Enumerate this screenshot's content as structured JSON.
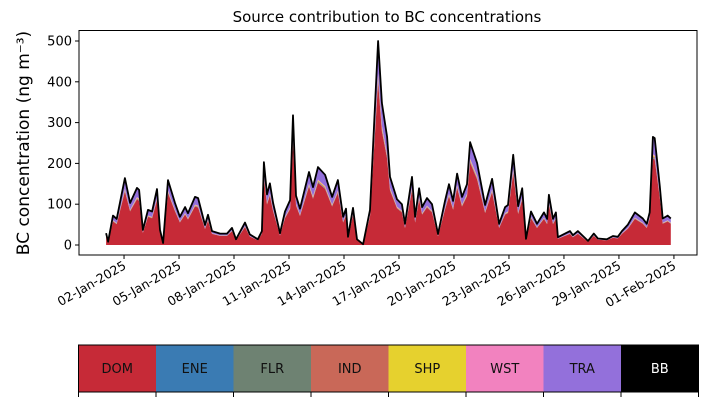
{
  "chart_data": {
    "type": "area",
    "stacked": true,
    "title": "Source contribution to BC concentrations",
    "ylabel": "BC concentration (ng m⁻³)",
    "xlabel": "",
    "x_unit": "days since 01-Jan-2025",
    "ylim": [
      -25,
      525
    ],
    "yticks": [
      0,
      100,
      200,
      300,
      400,
      500
    ],
    "xlim_days": [
      -1.1,
      32.6
    ],
    "xticks": [
      {
        "day": 1,
        "label": "02-Jan-2025"
      },
      {
        "day": 4,
        "label": "05-Jan-2025"
      },
      {
        "day": 7,
        "label": "08-Jan-2025"
      },
      {
        "day": 10,
        "label": "11-Jan-2025"
      },
      {
        "day": 13,
        "label": "14-Jan-2025"
      },
      {
        "day": 16,
        "label": "17-Jan-2025"
      },
      {
        "day": 19,
        "label": "20-Jan-2025"
      },
      {
        "day": 22,
        "label": "23-Jan-2025"
      },
      {
        "day": 25,
        "label": "26-Jan-2025"
      },
      {
        "day": 28,
        "label": "29-Jan-2025"
      },
      {
        "day": 31,
        "label": "01-Feb-2025"
      }
    ],
    "total": [
      [
        0.02,
        29
      ],
      [
        0.13,
        8
      ],
      [
        0.4,
        72
      ],
      [
        0.6,
        64
      ],
      [
        1.05,
        164
      ],
      [
        1.33,
        103
      ],
      [
        1.71,
        140
      ],
      [
        1.82,
        135
      ],
      [
        2.03,
        37
      ],
      [
        2.31,
        86
      ],
      [
        2.53,
        82
      ],
      [
        2.8,
        137
      ],
      [
        2.96,
        37
      ],
      [
        3.13,
        5
      ],
      [
        3.4,
        159
      ],
      [
        3.78,
        103
      ],
      [
        4.05,
        69
      ],
      [
        4.33,
        93
      ],
      [
        4.49,
        78
      ],
      [
        4.87,
        118
      ],
      [
        5.04,
        115
      ],
      [
        5.42,
        49
      ],
      [
        5.58,
        74
      ],
      [
        5.8,
        34
      ],
      [
        6.24,
        28
      ],
      [
        6.62,
        28
      ],
      [
        6.89,
        42
      ],
      [
        7.11,
        14
      ],
      [
        7.6,
        55
      ],
      [
        7.86,
        26
      ],
      [
        8.3,
        14
      ],
      [
        8.52,
        34
      ],
      [
        8.63,
        203
      ],
      [
        8.8,
        124
      ],
      [
        8.96,
        151
      ],
      [
        9.13,
        103
      ],
      [
        9.51,
        29
      ],
      [
        9.78,
        82
      ],
      [
        10.06,
        110
      ],
      [
        10.22,
        318
      ],
      [
        10.38,
        121
      ],
      [
        10.6,
        89
      ],
      [
        11.09,
        179
      ],
      [
        11.31,
        142
      ],
      [
        11.58,
        191
      ],
      [
        11.97,
        172
      ],
      [
        12.35,
        118
      ],
      [
        12.67,
        159
      ],
      [
        12.95,
        69
      ],
      [
        13.11,
        89
      ],
      [
        13.22,
        20
      ],
      [
        13.49,
        91
      ],
      [
        13.71,
        14
      ],
      [
        14.04,
        2
      ],
      [
        14.42,
        86
      ],
      [
        14.86,
        500
      ],
      [
        15.07,
        348
      ],
      [
        15.35,
        265
      ],
      [
        15.51,
        167
      ],
      [
        15.89,
        112
      ],
      [
        16.16,
        100
      ],
      [
        16.33,
        52
      ],
      [
        16.71,
        167
      ],
      [
        16.88,
        69
      ],
      [
        17.1,
        139
      ],
      [
        17.26,
        93
      ],
      [
        17.53,
        115
      ],
      [
        17.8,
        100
      ],
      [
        18.13,
        27
      ],
      [
        18.51,
        108
      ],
      [
        18.73,
        149
      ],
      [
        18.95,
        108
      ],
      [
        19.17,
        175
      ],
      [
        19.44,
        118
      ],
      [
        19.71,
        149
      ],
      [
        19.88,
        252
      ],
      [
        20.26,
        201
      ],
      [
        20.7,
        98
      ],
      [
        21.08,
        162
      ],
      [
        21.46,
        52
      ],
      [
        21.79,
        93
      ],
      [
        21.95,
        98
      ],
      [
        22.23,
        221
      ],
      [
        22.5,
        95
      ],
      [
        22.72,
        139
      ],
      [
        22.93,
        15
      ],
      [
        23.2,
        82
      ],
      [
        23.53,
        52
      ],
      [
        23.91,
        80
      ],
      [
        24.08,
        64
      ],
      [
        24.18,
        123
      ],
      [
        24.4,
        64
      ],
      [
        24.56,
        80
      ],
      [
        24.67,
        19
      ],
      [
        25.33,
        34
      ],
      [
        25.49,
        24
      ],
      [
        25.76,
        34
      ],
      [
        26.31,
        10
      ],
      [
        26.63,
        28
      ],
      [
        26.85,
        16
      ],
      [
        27.34,
        14
      ],
      [
        27.67,
        22
      ],
      [
        27.94,
        20
      ],
      [
        28.16,
        34
      ],
      [
        28.49,
        50
      ],
      [
        28.87,
        80
      ],
      [
        29.3,
        65
      ],
      [
        29.52,
        52
      ],
      [
        29.68,
        80
      ],
      [
        29.85,
        265
      ],
      [
        29.95,
        262
      ],
      [
        30.23,
        144
      ],
      [
        30.39,
        65
      ],
      [
        30.66,
        72
      ],
      [
        30.83,
        65
      ]
    ],
    "series": [
      {
        "name": "DOM",
        "share": 0.8,
        "color": "#c62a37"
      },
      {
        "name": "ENE",
        "share": 0.005,
        "color": "#3a7bb3"
      },
      {
        "name": "FLR",
        "share": 0.005,
        "color": "#6e8272"
      },
      {
        "name": "IND",
        "share": 0.01,
        "color": "#c96858"
      },
      {
        "name": "SHP",
        "share": 0.01,
        "color": "#e6d12e"
      },
      {
        "name": "WST",
        "share": 0.01,
        "color": "#f282bf"
      },
      {
        "name": "TRA",
        "share": 0.16,
        "color": "#9370db"
      },
      {
        "name": "BB",
        "share": 0.0,
        "color": "#000000"
      }
    ],
    "legend": {
      "placement": "bottom",
      "labels": [
        "DOM",
        "ENE",
        "FLR",
        "IND",
        "SHP",
        "WST",
        "TRA",
        "BB"
      ]
    }
  }
}
